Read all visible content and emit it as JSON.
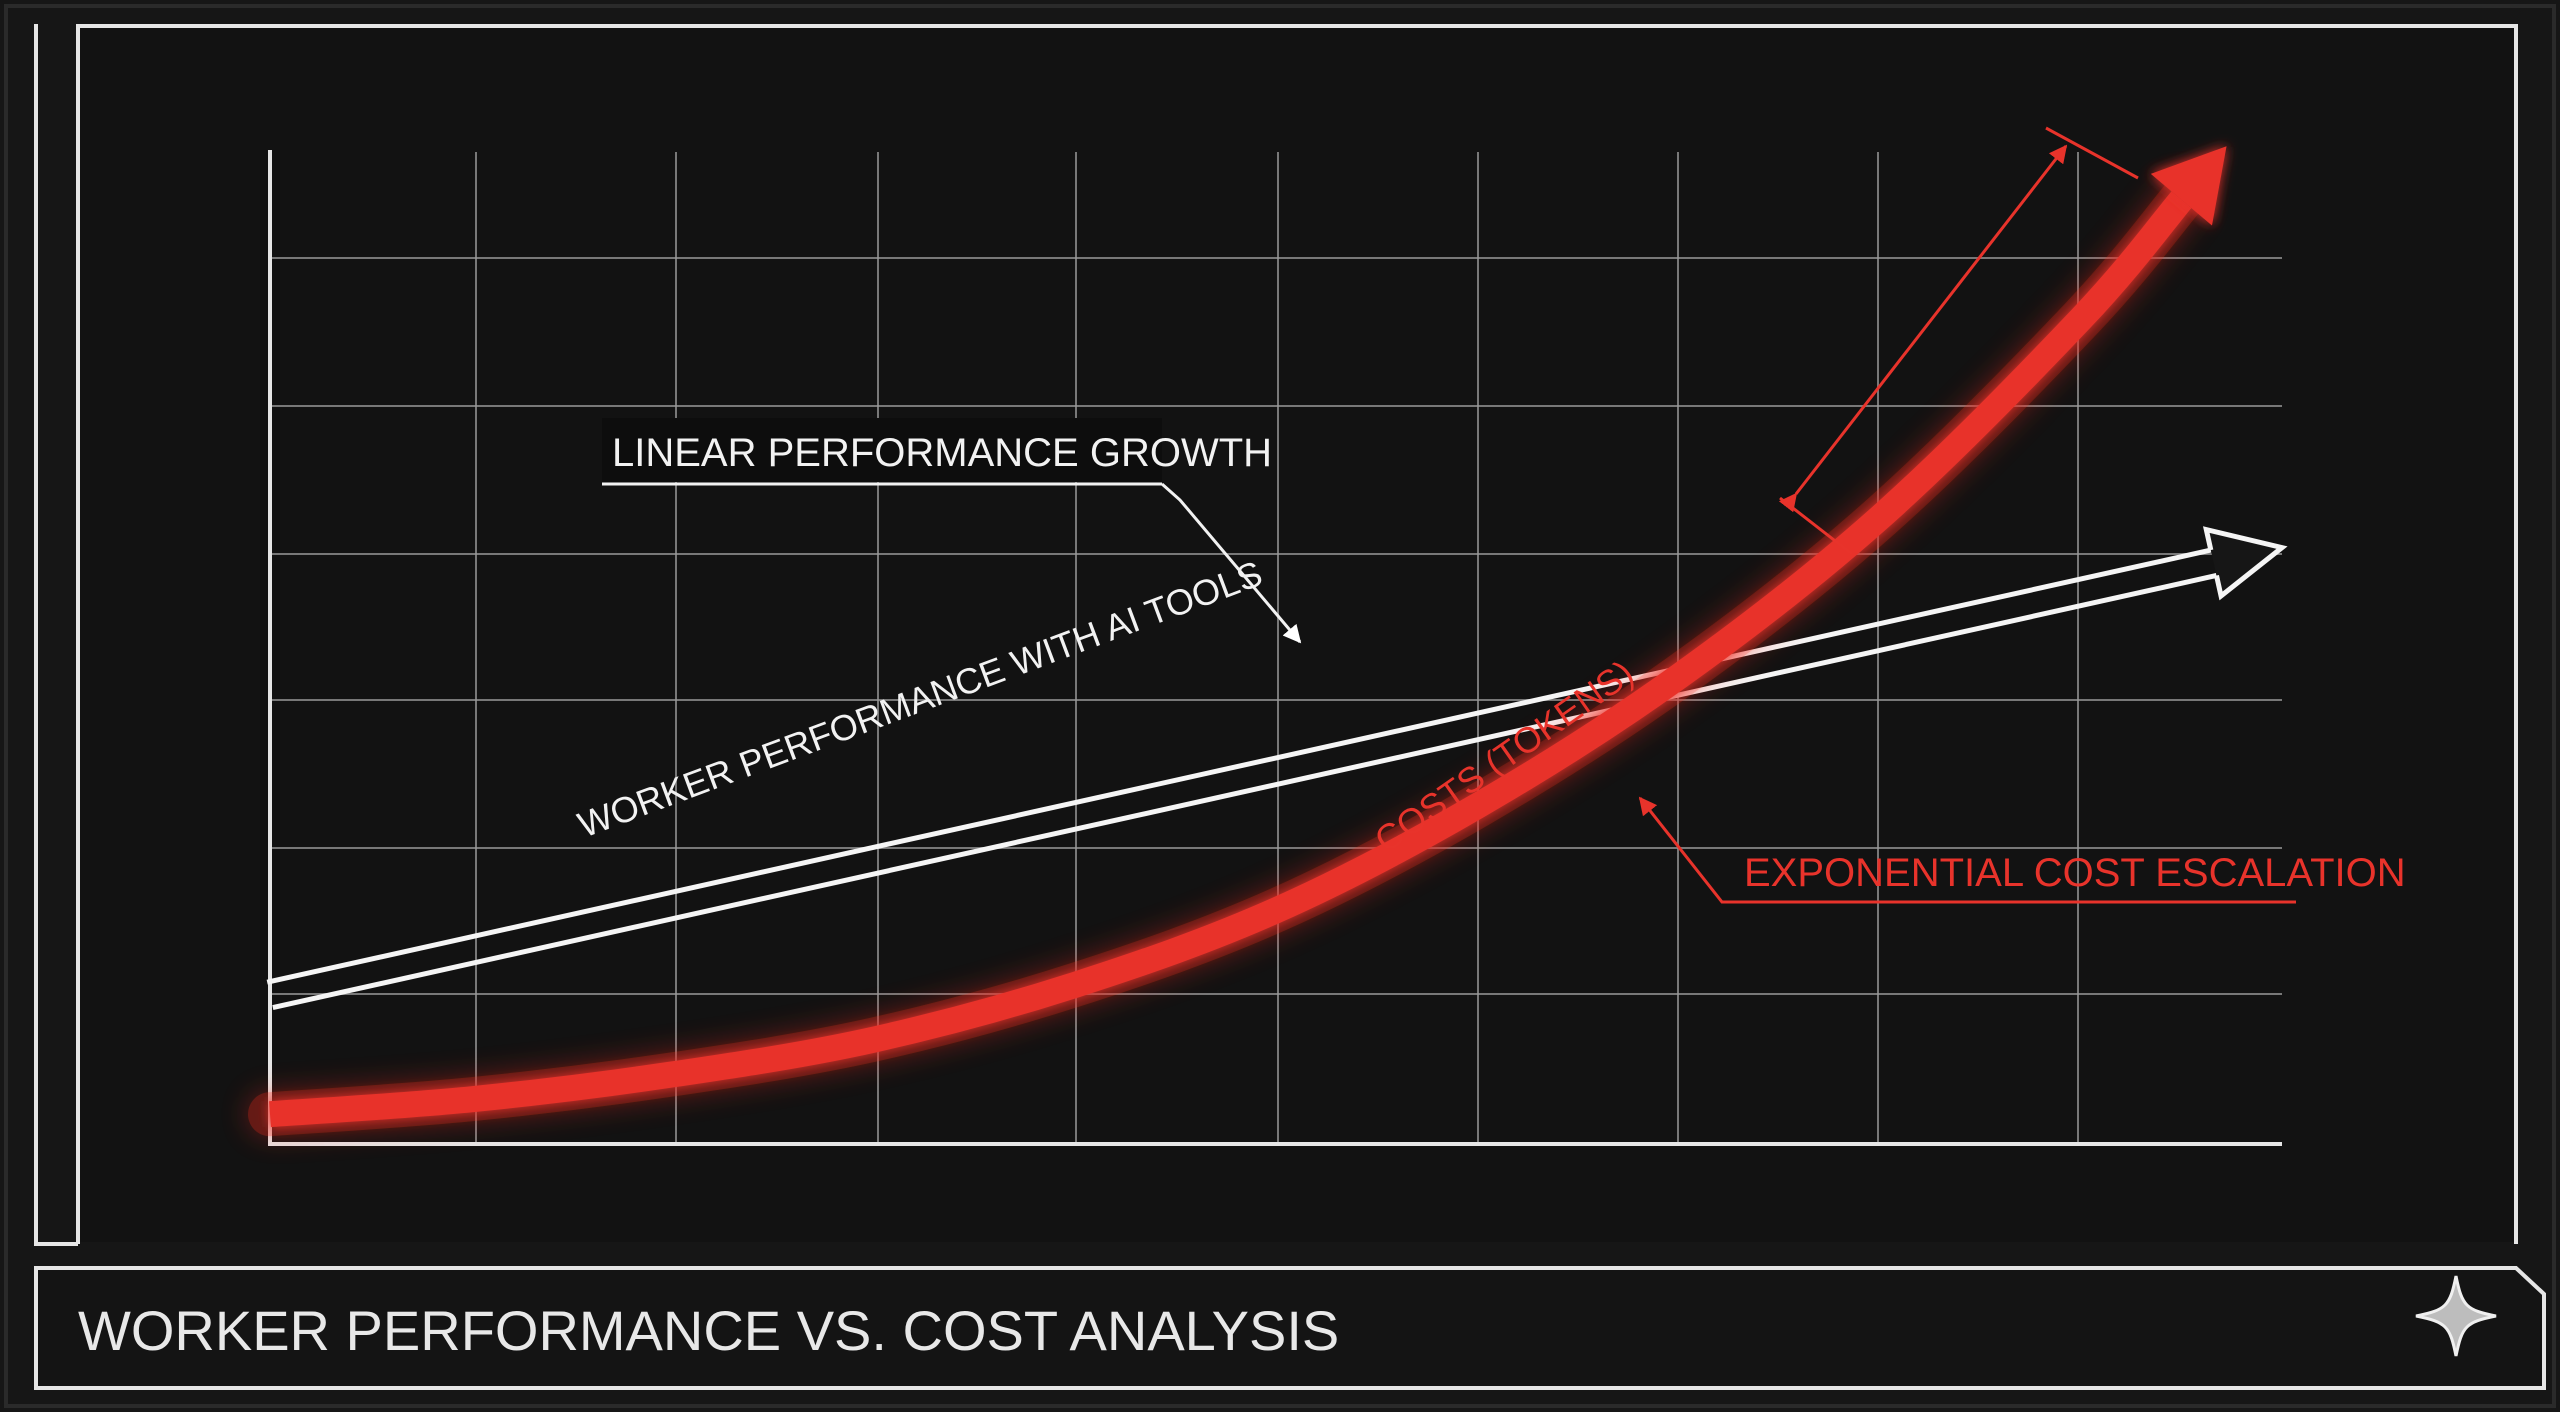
{
  "footer": {
    "title": "WORKER PERFORMANCE VS. COST ANALYSIS",
    "icon": "sparkle-icon"
  },
  "chart_data": {
    "type": "line",
    "title": "WORKER PERFORMANCE VS. COST ANALYSIS",
    "grid": true,
    "xlim": [
      0,
      10
    ],
    "ylim": [
      0,
      10
    ],
    "series": [
      {
        "name": "WORKER PERFORMANCE WITH AI TOOLS",
        "color": "#ffffff",
        "style": "double-line arrow",
        "x": [
          0,
          10
        ],
        "y": [
          1.5,
          6.0
        ]
      },
      {
        "name": "COSTS (TOKENS)",
        "color": "#e8332b",
        "style": "glowing arrow",
        "x": [
          0,
          1,
          2,
          3,
          4,
          5,
          6,
          7,
          8,
          9,
          9.5
        ],
        "y": [
          0.3,
          0.45,
          0.7,
          1.05,
          1.6,
          2.35,
          3.4,
          4.7,
          6.3,
          8.3,
          9.5
        ]
      }
    ],
    "annotations": [
      {
        "text": "LINEAR PERFORMANCE GROWTH",
        "color": "#ffffff"
      },
      {
        "text": "EXPONENTIAL COST ESCALATION",
        "color": "#e8332b"
      }
    ]
  }
}
